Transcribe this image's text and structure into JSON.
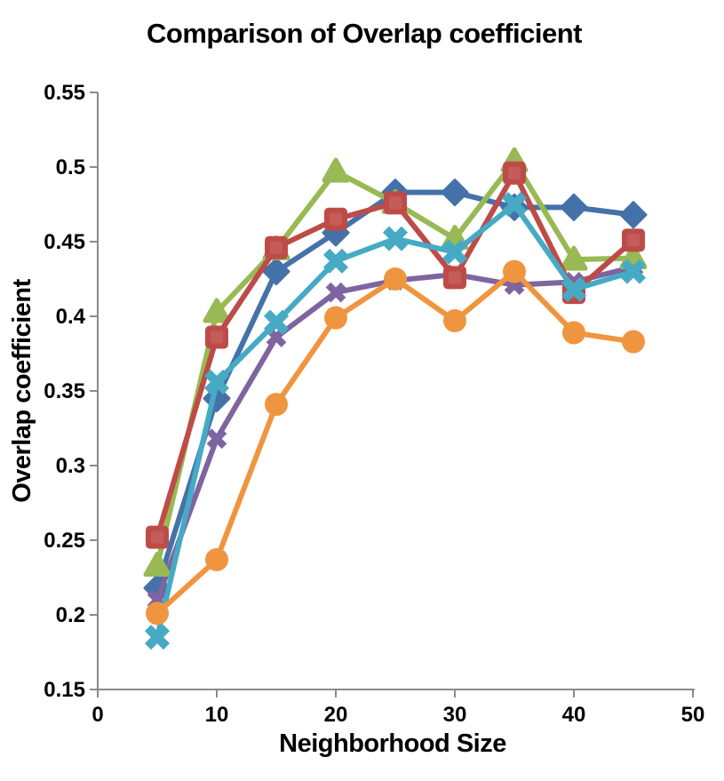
{
  "window": {
    "background_color": "#ffffff"
  },
  "chart_data": {
    "type": "line",
    "title": "Comparison of Overlap coefficient",
    "xlabel": "Neighborhood Size",
    "ylabel": "Overlap coefficient",
    "grid": false,
    "legend": false,
    "axis_color": "#8a8a8a",
    "text_color": "#000000",
    "xlim": [
      0,
      50
    ],
    "ylim": [
      0.15,
      0.55
    ],
    "xticks": [
      0,
      10,
      20,
      30,
      40,
      50
    ],
    "xtick_labels": [
      "0",
      "10",
      "20",
      "30",
      "40",
      "50"
    ],
    "yticks": [
      0.15,
      0.2,
      0.25,
      0.3,
      0.35,
      0.4,
      0.45,
      0.5,
      0.55
    ],
    "ytick_labels": [
      "0.15",
      "0.2",
      "0.25",
      "0.3",
      "0.35",
      "0.4",
      "0.45",
      "0.5",
      "0.55"
    ],
    "x": [
      5,
      10,
      15,
      20,
      25,
      30,
      35,
      40,
      45
    ],
    "series": [
      {
        "name": "blue-diamond",
        "color": "#4472a8",
        "marker": "diamond",
        "values": [
          0.218,
          0.345,
          0.43,
          0.456,
          0.483,
          0.483,
          0.473,
          0.473,
          0.468
        ]
      },
      {
        "name": "purple-x",
        "color": "#7e64a0",
        "marker": "x",
        "values": [
          0.21,
          0.318,
          0.386,
          0.416,
          0.424,
          0.428,
          0.421,
          0.423,
          0.433
        ]
      },
      {
        "name": "green-triangle",
        "color": "#98b954",
        "marker": "triangle",
        "values": [
          0.233,
          0.403,
          0.445,
          0.497,
          0.476,
          0.452,
          0.504,
          0.438,
          0.439
        ]
      },
      {
        "name": "red-square",
        "color": "#be4b48",
        "marker": "square",
        "values": [
          0.252,
          0.386,
          0.446,
          0.465,
          0.476,
          0.426,
          0.496,
          0.416,
          0.451
        ]
      },
      {
        "name": "teal-x",
        "color": "#46aac5",
        "marker": "x-thick",
        "values": [
          0.185,
          0.356,
          0.396,
          0.437,
          0.452,
          0.443,
          0.475,
          0.418,
          0.43
        ]
      },
      {
        "name": "orange-circle",
        "color": "#f0953f",
        "marker": "circle",
        "values": [
          0.201,
          0.237,
          0.341,
          0.399,
          0.425,
          0.397,
          0.43,
          0.389,
          0.383
        ]
      }
    ]
  }
}
